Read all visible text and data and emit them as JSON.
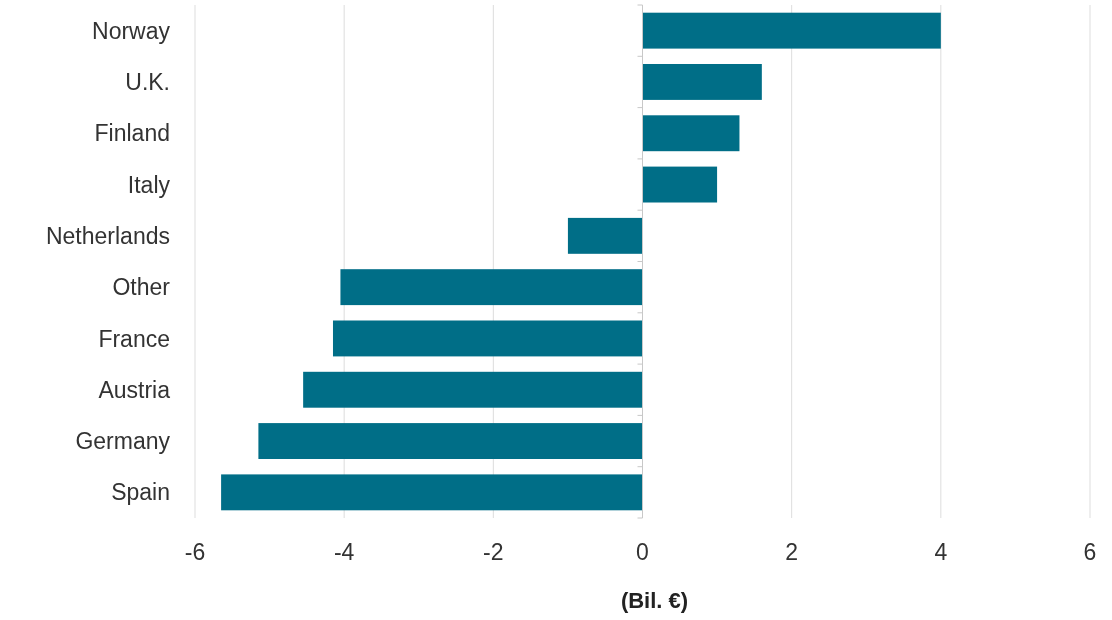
{
  "chart_data": {
    "type": "bar",
    "orientation": "horizontal",
    "xlabel": "(Bil. €)",
    "categories": [
      "Norway",
      "U.K.",
      "Finland",
      "Italy",
      "Netherlands",
      "Other",
      "France",
      "Austria",
      "Germany",
      "Spain"
    ],
    "values": [
      4.0,
      1.6,
      1.3,
      1.0,
      -1.0,
      -4.05,
      -4.15,
      -4.55,
      -5.15,
      -5.65
    ],
    "color": "#006e87",
    "xlim": [
      -6,
      6
    ],
    "xticks": [
      -6,
      -4,
      -2,
      0,
      2,
      4,
      6
    ],
    "grid": "x"
  }
}
